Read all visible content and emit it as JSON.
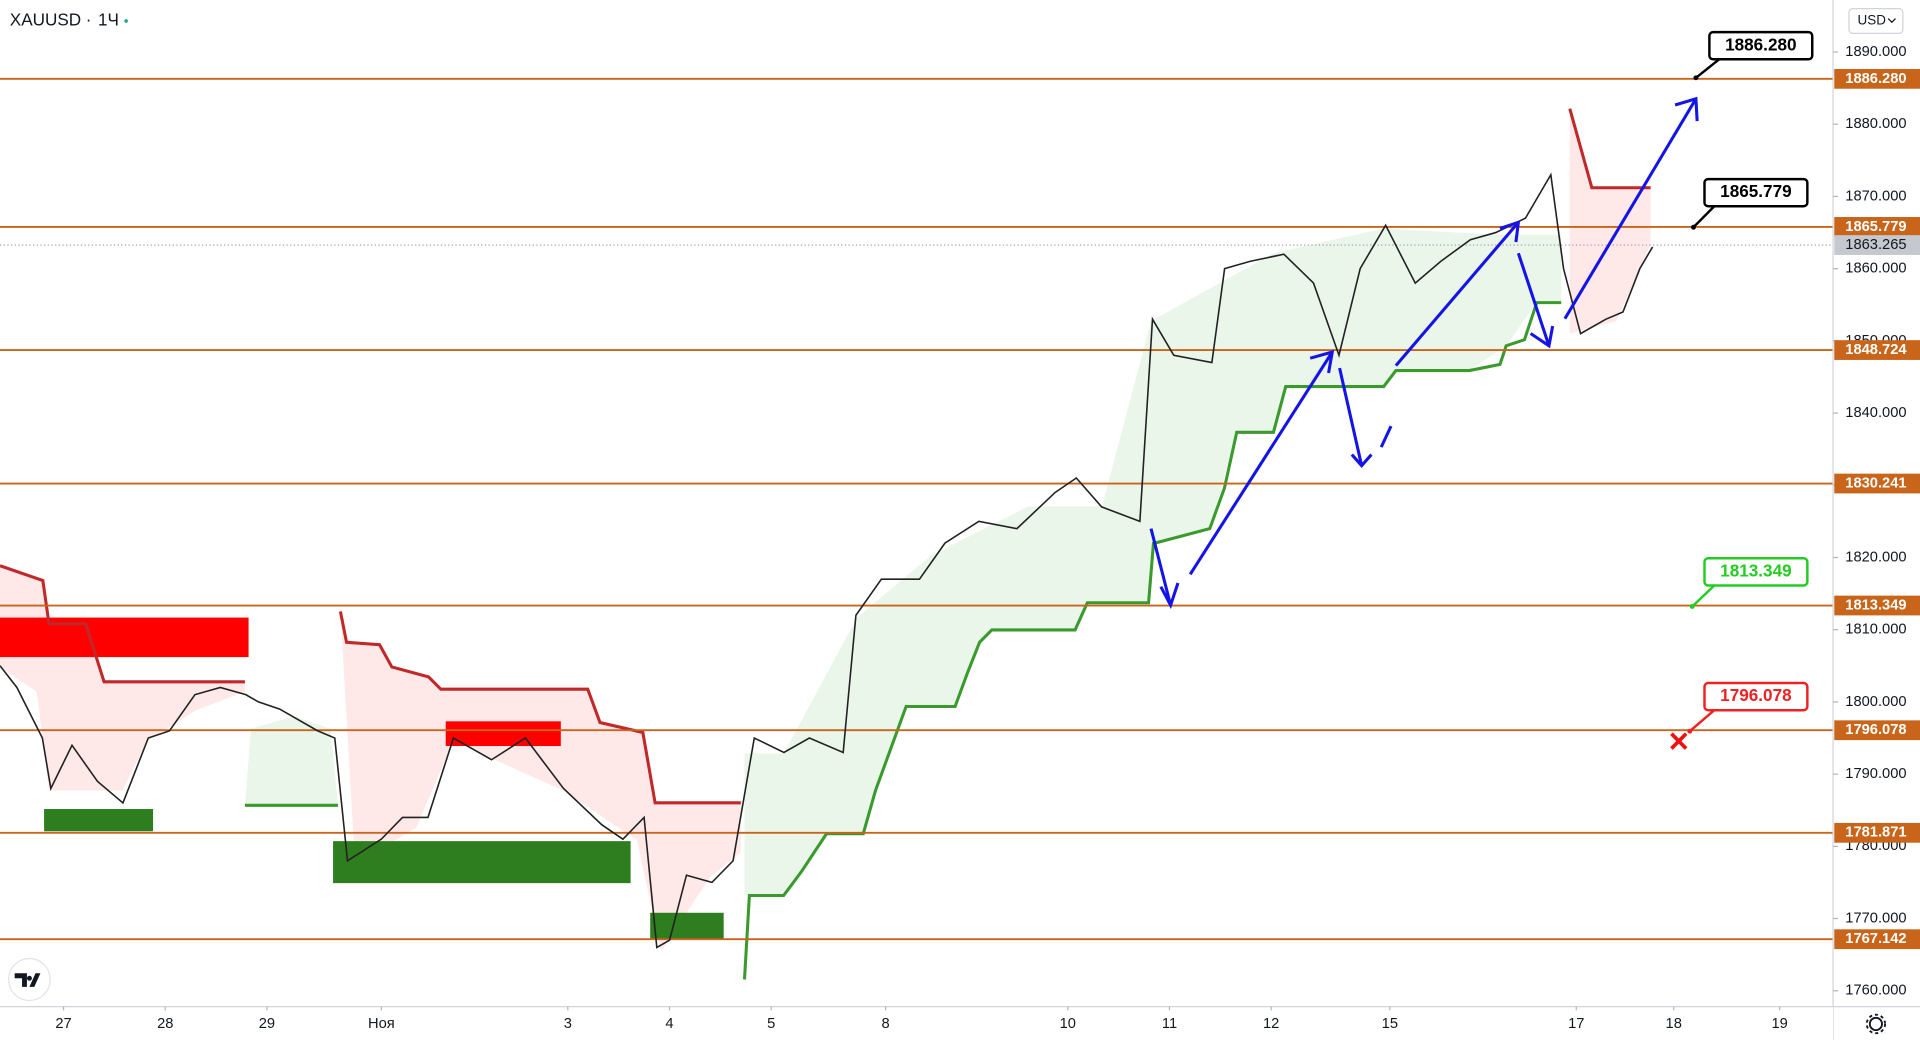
{
  "chart_data": {
    "type": "line",
    "title": "XAUUSD",
    "interval": "1Ч",
    "currency": "USD",
    "x": [
      0,
      4,
      10,
      12,
      17,
      23,
      29,
      35,
      40,
      46,
      52,
      58,
      61,
      66,
      75,
      79,
      82,
      90,
      95,
      101,
      107,
      116,
      124,
      133,
      142,
      147,
      152,
      155,
      158,
      162,
      168,
      173,
      178,
      185,
      191,
      199,
      202,
      208,
      217,
      223,
      231,
      240,
      249,
      254,
      260,
      269,
      272,
      277,
      286,
      289,
      295,
      303,
      310,
      316,
      321,
      327,
      334,
      340,
      347,
      353,
      360,
      366,
      369,
      373,
      379,
      383,
      387,
      390
    ],
    "series": [
      {
        "color": "#222222",
        "values": [
          1805,
          1802,
          1795,
          1788,
          1794,
          1789,
          1786,
          1795,
          1796,
          1801,
          1802,
          1801,
          1800,
          1799,
          1796,
          1795,
          1778,
          1781,
          1784,
          1784,
          1795,
          1792,
          1795,
          1788,
          1783,
          1781,
          1784,
          1766,
          1767,
          1776,
          1775,
          1778,
          1795,
          1793,
          1795,
          1793,
          1812,
          1817,
          1817,
          1822,
          1825,
          1824,
          1829,
          1831,
          1827,
          1825,
          1853,
          1848,
          1847,
          1860,
          1861,
          1862,
          1858,
          1848,
          1860,
          1866,
          1858,
          1861,
          1864,
          1865,
          1867,
          1873,
          1860,
          1851,
          1853,
          1854,
          1860,
          1863
        ]
      }
    ],
    "xlim": [
      0,
      432.6
    ],
    "xticks": [
      {
        "value": 15,
        "label": "27"
      },
      {
        "value": 39,
        "label": "28"
      },
      {
        "value": 63,
        "label": "29"
      },
      {
        "value": 90,
        "label": "Ноя"
      },
      {
        "value": 134,
        "label": "3"
      },
      {
        "value": 158,
        "label": "4"
      },
      {
        "value": 182,
        "label": "5"
      },
      {
        "value": 209,
        "label": "8"
      },
      {
        "value": 252,
        "label": "10"
      },
      {
        "value": 276,
        "label": "11"
      },
      {
        "value": 300,
        "label": "12"
      },
      {
        "value": 328,
        "label": "15"
      },
      {
        "value": 372,
        "label": "17"
      },
      {
        "value": 395,
        "label": "18"
      },
      {
        "value": 420,
        "label": "19"
      }
    ],
    "ylim": [
      1757.8,
      1897.2
    ],
    "yticks": [
      {
        "value": 1760,
        "label": "1760.000"
      },
      {
        "value": 1770,
        "label": "1770.000"
      },
      {
        "value": 1780,
        "label": "1780.000"
      },
      {
        "value": 1790,
        "label": "1790.000"
      },
      {
        "value": 1800,
        "label": "1800.000"
      },
      {
        "value": 1810,
        "label": "1810.000"
      },
      {
        "value": 1820,
        "label": "1820.000"
      },
      {
        "value": 1830,
        "label": "1830.000"
      },
      {
        "value": 1840,
        "label": "1840.000"
      },
      {
        "value": 1850,
        "label": "1850.000"
      },
      {
        "value": 1860,
        "label": "1860.000"
      },
      {
        "value": 1870,
        "label": "1870.000"
      },
      {
        "value": 1880,
        "label": "1880.000"
      },
      {
        "value": 1890,
        "label": "1890.000"
      }
    ],
    "levels": [
      {
        "value": 1886.28,
        "label": "1886.280"
      },
      {
        "value": 1865.779,
        "label": "1865.779"
      },
      {
        "value": 1848.724,
        "label": "1848.724"
      },
      {
        "value": 1830.241,
        "label": "1830.241"
      },
      {
        "value": 1813.349,
        "label": "1813.349"
      },
      {
        "value": 1796.078,
        "label": "1796.078"
      },
      {
        "value": 1781.871,
        "label": "1781.871"
      },
      {
        "value": 1767.142,
        "label": "1767.142"
      }
    ],
    "level_color": "#c8651a",
    "current_price": {
      "value": 1863.265,
      "label": "1863.265"
    },
    "callouts": [
      {
        "text": "1886.280",
        "color": "#000000"
      },
      {
        "text": "1865.779",
        "color": "#000000"
      },
      {
        "text": "1813.349",
        "color": "#22cc22"
      },
      {
        "text": "1796.078",
        "color": "#ee2222"
      }
    ]
  }
}
